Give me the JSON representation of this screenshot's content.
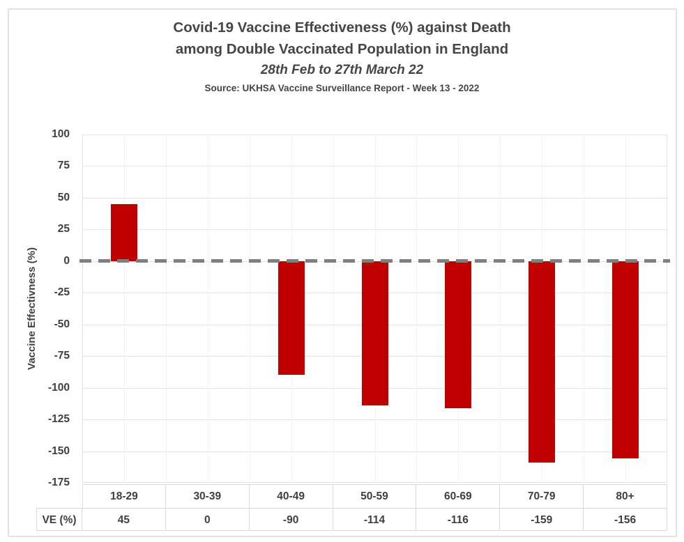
{
  "title": {
    "line1": "Covid-19 Vaccine Effectiveness (%) against Death",
    "line2": "among Double Vaccinated Population in England",
    "date_line": "28th Feb to 27th March 22",
    "source_line": "Source: UKHSA Vaccine Surveillance Report - Week 13 - 2022"
  },
  "chart_data": {
    "type": "bar",
    "title": "Covid-19 Vaccine Effectiveness (%) against Death among Double Vaccinated Population in England",
    "subtitle": "28th Feb to 27th March 22",
    "source": "Source: UKHSA Vaccine Surveillance Report - Week 13 - 2022",
    "categories": [
      "18-29",
      "30-39",
      "40-49",
      "50-59",
      "60-69",
      "70-79",
      "80+"
    ],
    "values": [
      45,
      0,
      -90,
      -114,
      -116,
      -159,
      -156
    ],
    "series_name": "VE (%)",
    "xlabel": "",
    "ylabel": "Vaccine Effectivness (%)",
    "ylim": [
      -175,
      100
    ],
    "ytick_step": 25,
    "grid": "horizontal major lines every 25; faint vertical lines at half-category intervals",
    "zero_line": "thick gray dashed line at y=0",
    "legend": "none",
    "data_table": {
      "row_label": "VE (%)",
      "row_values": [
        45,
        0,
        -90,
        -114,
        -116,
        -159,
        -156
      ]
    }
  },
  "colors": {
    "bar": "#c00000",
    "zero_line": "#7f7f7f",
    "grid_major": "#e3e3e3",
    "grid_minor": "#f1f1f1",
    "table_border": "#d9d9d9",
    "text": "#404040",
    "frame_border": "#e2e2e2",
    "background": "#ffffff"
  }
}
